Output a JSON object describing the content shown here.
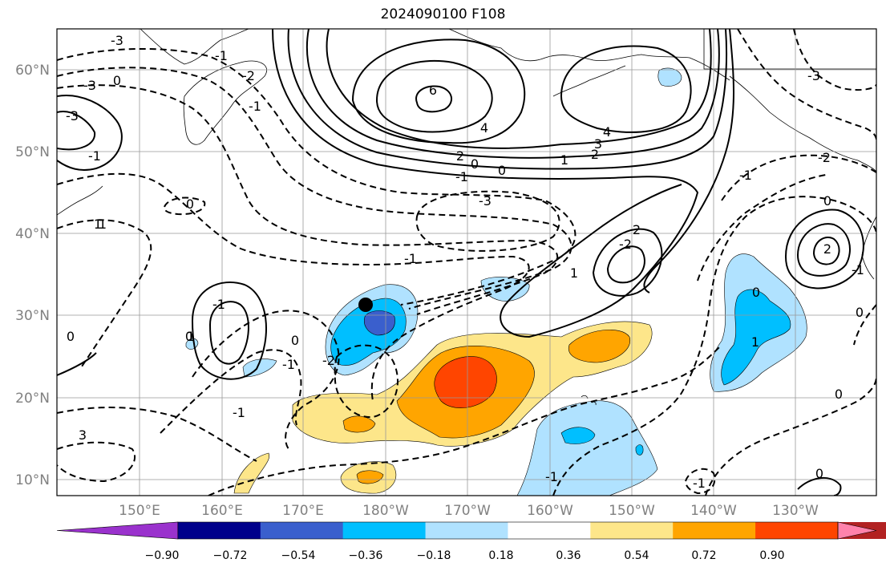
{
  "title": "2024090100 F108",
  "map": {
    "lat_labels": [
      "60°N",
      "50°N",
      "40°N",
      "30°N",
      "20°N",
      "10°N"
    ],
    "lon_labels": [
      "150°E",
      "160°E",
      "170°E",
      "180°W",
      "170°W",
      "160°W",
      "150°W",
      "140°W",
      "130°W"
    ],
    "contour_labels": [
      "-3",
      "0",
      "-3",
      "1",
      "3",
      "-3",
      "-1",
      "0",
      "-1",
      "0",
      "-1",
      "-2",
      "-1",
      "1",
      "0",
      "1",
      "-1",
      "-2",
      "-1",
      "0",
      "-1",
      "6",
      "4",
      "4",
      "3",
      "2",
      "1",
      "2",
      "0",
      "0",
      "-1",
      "-3",
      "-2",
      "1",
      "2",
      "2",
      "0",
      "0",
      "-1",
      "-2",
      "-1",
      "-3",
      "1",
      "0",
      "0",
      "-1",
      "-1",
      "0"
    ],
    "marker": "typhoon-position-dot"
  },
  "colorbar": {
    "ticks": [
      "−0.90",
      "−0.72",
      "−0.54",
      "−0.36",
      "−0.18",
      "0.18",
      "0.36",
      "0.54",
      "0.72",
      "0.90"
    ],
    "colors": [
      "#9a32cd",
      "#00008b",
      "#3a5fcd",
      "#00bfff",
      "#b0e2ff",
      "#ffffff",
      "#fde68a",
      "#ffa500",
      "#ff4500",
      "#b22222",
      "#ff82ab"
    ]
  }
}
